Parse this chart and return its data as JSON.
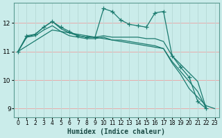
{
  "xlabel": "Humidex (Indice chaleur)",
  "xlim": [
    -0.5,
    23.5
  ],
  "ylim": [
    8.7,
    12.7
  ],
  "yticks": [
    9,
    10,
    11,
    12
  ],
  "xticks": [
    0,
    1,
    2,
    3,
    4,
    5,
    6,
    7,
    8,
    9,
    10,
    11,
    12,
    13,
    14,
    15,
    16,
    17,
    18,
    19,
    20,
    21,
    22,
    23
  ],
  "bg_color": "#caecea",
  "grid_major_color": "#f0c8c8",
  "grid_minor_color": "#d8eeed",
  "line_color": "#1a7a6e",
  "lines": [
    {
      "x": [
        0,
        1,
        2,
        3,
        4,
        5,
        6,
        7,
        8,
        9,
        10,
        11,
        12,
        13,
        14,
        15,
        16,
        17,
        18,
        19,
        20,
        21,
        22,
        23
      ],
      "y": [
        11.0,
        11.55,
        11.6,
        11.85,
        12.05,
        11.85,
        11.7,
        11.55,
        11.5,
        11.5,
        12.5,
        12.4,
        12.1,
        11.95,
        11.9,
        11.85,
        12.35,
        12.4,
        10.85,
        10.45,
        10.1,
        9.25,
        9.0,
        null
      ],
      "marker": true
    },
    {
      "x": [
        0,
        1,
        2,
        3,
        4,
        5,
        6,
        7,
        8,
        9,
        10,
        11,
        12,
        13,
        14,
        15,
        16,
        17,
        18,
        19,
        20,
        21,
        22,
        23
      ],
      "y": [
        11.0,
        11.5,
        11.6,
        11.85,
        12.05,
        11.8,
        11.65,
        11.55,
        11.5,
        11.5,
        11.55,
        11.5,
        11.5,
        11.5,
        11.5,
        11.45,
        11.45,
        11.35,
        10.85,
        10.55,
        10.25,
        9.95,
        9.0,
        null
      ],
      "marker": false
    },
    {
      "x": [
        0,
        1,
        2,
        3,
        4,
        5,
        6,
        7,
        8,
        9,
        10,
        11,
        12,
        13,
        14,
        15,
        16,
        17,
        18,
        19,
        20,
        21,
        22,
        23
      ],
      "y": [
        11.0,
        11.5,
        11.55,
        11.75,
        11.9,
        11.7,
        11.55,
        11.5,
        11.45,
        11.45,
        11.5,
        11.4,
        11.4,
        11.35,
        11.3,
        11.25,
        11.2,
        11.1,
        10.65,
        10.3,
        9.95,
        9.6,
        9.0,
        null
      ],
      "marker": false
    },
    {
      "x": [
        0,
        4,
        17,
        18,
        19,
        20,
        21,
        22,
        23
      ],
      "y": [
        11.0,
        11.75,
        11.1,
        10.6,
        10.2,
        9.7,
        9.4,
        9.1,
        9.0
      ],
      "marker": false
    }
  ]
}
